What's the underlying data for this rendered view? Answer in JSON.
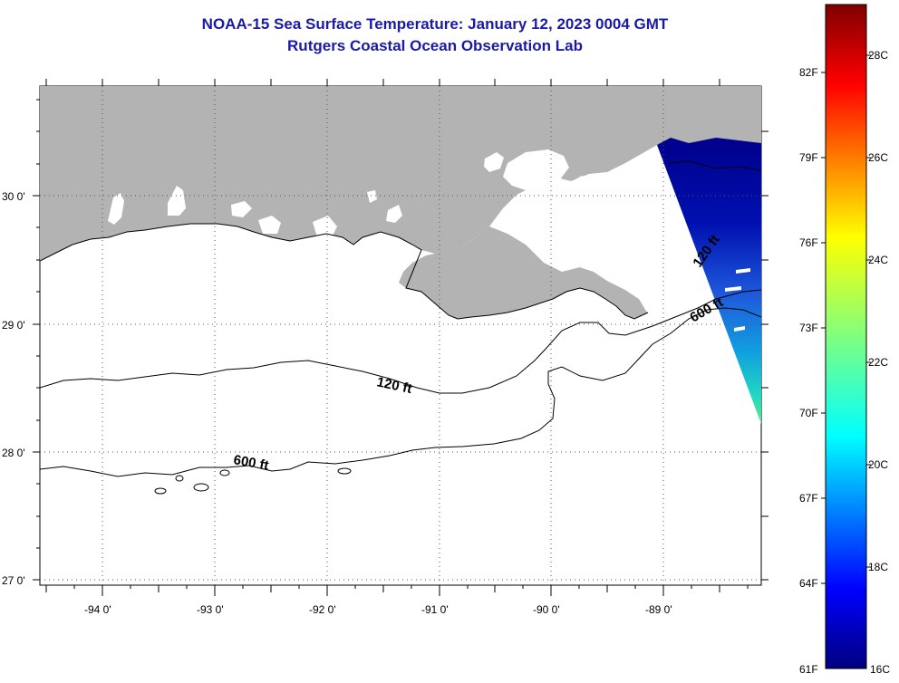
{
  "header": {
    "title_line1": "NOAA-15 Sea Surface Temperature:  January 12, 2023 0004 GMT",
    "title_line2": "Rutgers Coastal Ocean Observation Lab"
  },
  "map": {
    "lat_labels": [
      "30 0'",
      "29 0'",
      "28 0'",
      "27 0'"
    ],
    "lon_labels": [
      "-94 0'",
      "-93 0'",
      "-92 0'",
      "-91 0'",
      "-90 0'",
      "-89 0'"
    ],
    "contour_labels": {
      "c120_shelf": "120 ft",
      "c600_shelf": "600 ft",
      "c120_east": "120 ft",
      "c600_east": "600 ft"
    },
    "colors": {
      "land": "#b3b3b3",
      "ocean": "#ffffff",
      "title": "#1a1aa6"
    }
  },
  "colorbar": {
    "fahrenheit_labels": [
      "82F",
      "79F",
      "76F",
      "73F",
      "70F",
      "67F",
      "64F",
      "61F"
    ],
    "celsius_labels": [
      "28C",
      "26C",
      "24C",
      "22C",
      "20C",
      "18C",
      "16C"
    ]
  }
}
